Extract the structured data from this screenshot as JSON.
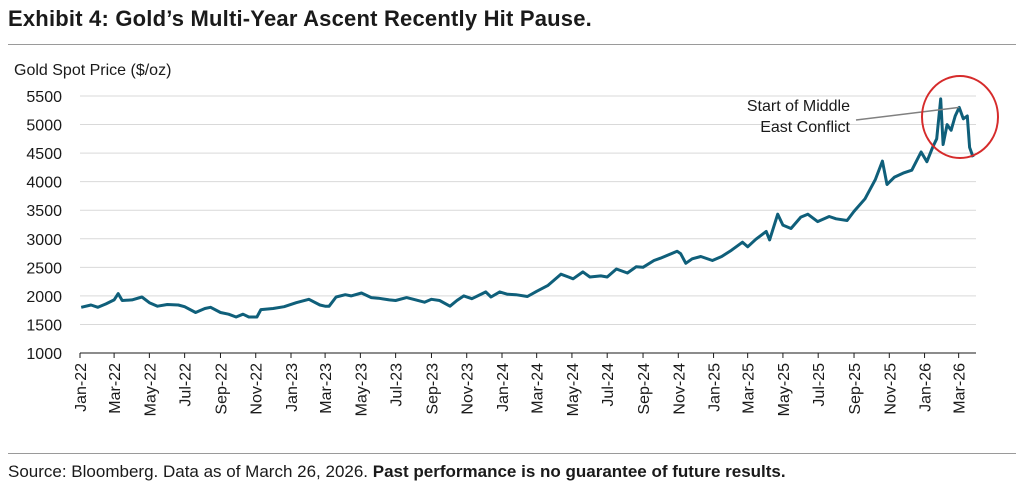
{
  "title": "Exhibit 4: Gold’s Multi-Year Ascent Recently Hit Pause.",
  "footer": {
    "source": "Source: Bloomberg. Data as of March 26, 2026. ",
    "disclaimer": "Past performance is no guarantee of future results."
  },
  "colors": {
    "line": "#0f5f7a",
    "circle": "#d62b2b",
    "grid": "#d9d9d9",
    "annotation_line": "#808080"
  },
  "chart_data": {
    "type": "line",
    "title": "Exhibit 4: Gold’s Multi-Year Ascent Recently Hit Pause.",
    "ylabel": "Gold Spot Price ($/oz)",
    "xlabel": "",
    "ylim": [
      1000,
      5500
    ],
    "yticks": [
      1000,
      1500,
      2000,
      2500,
      3000,
      3500,
      4000,
      4500,
      5000,
      5500
    ],
    "grid": "horizontal",
    "xlim": [
      "2022-01-01",
      "2026-03-31"
    ],
    "xticks": [
      {
        "date": "2022-01-01",
        "label": "Jan-22"
      },
      {
        "date": "2022-03-01",
        "label": "Mar-22"
      },
      {
        "date": "2022-05-01",
        "label": "May-22"
      },
      {
        "date": "2022-07-01",
        "label": "Jul-22"
      },
      {
        "date": "2022-09-01",
        "label": "Sep-22"
      },
      {
        "date": "2022-11-01",
        "label": "Nov-22"
      },
      {
        "date": "2023-01-01",
        "label": "Jan-23"
      },
      {
        "date": "2023-03-01",
        "label": "Mar-23"
      },
      {
        "date": "2023-05-01",
        "label": "May-23"
      },
      {
        "date": "2023-07-01",
        "label": "Jul-23"
      },
      {
        "date": "2023-09-01",
        "label": "Sep-23"
      },
      {
        "date": "2023-11-01",
        "label": "Nov-23"
      },
      {
        "date": "2024-01-01",
        "label": "Jan-24"
      },
      {
        "date": "2024-03-01",
        "label": "Mar-24"
      },
      {
        "date": "2024-05-01",
        "label": "May-24"
      },
      {
        "date": "2024-07-01",
        "label": "Jul-24"
      },
      {
        "date": "2024-09-01",
        "label": "Sep-24"
      },
      {
        "date": "2024-11-01",
        "label": "Nov-24"
      },
      {
        "date": "2025-01-01",
        "label": "Jan-25"
      },
      {
        "date": "2025-03-01",
        "label": "Mar-25"
      },
      {
        "date": "2025-05-01",
        "label": "May-25"
      },
      {
        "date": "2025-07-01",
        "label": "Jul-25"
      },
      {
        "date": "2025-09-01",
        "label": "Sep-25"
      },
      {
        "date": "2025-11-01",
        "label": "Nov-25"
      },
      {
        "date": "2026-01-01",
        "label": "Jan-26"
      },
      {
        "date": "2026-03-01",
        "label": "Mar-26"
      }
    ],
    "series": [
      {
        "points": [
          [
            "2022-01-03",
            1800
          ],
          [
            "2022-01-20",
            1840
          ],
          [
            "2022-02-01",
            1800
          ],
          [
            "2022-02-15",
            1860
          ],
          [
            "2022-03-01",
            1930
          ],
          [
            "2022-03-08",
            2040
          ],
          [
            "2022-03-15",
            1920
          ],
          [
            "2022-04-01",
            1930
          ],
          [
            "2022-04-18",
            1980
          ],
          [
            "2022-05-01",
            1880
          ],
          [
            "2022-05-15",
            1820
          ],
          [
            "2022-06-01",
            1850
          ],
          [
            "2022-06-20",
            1840
          ],
          [
            "2022-07-01",
            1810
          ],
          [
            "2022-07-20",
            1710
          ],
          [
            "2022-08-05",
            1780
          ],
          [
            "2022-08-15",
            1800
          ],
          [
            "2022-09-01",
            1710
          ],
          [
            "2022-09-15",
            1680
          ],
          [
            "2022-09-28",
            1630
          ],
          [
            "2022-10-10",
            1680
          ],
          [
            "2022-10-20",
            1630
          ],
          [
            "2022-11-03",
            1630
          ],
          [
            "2022-11-10",
            1760
          ],
          [
            "2022-12-01",
            1780
          ],
          [
            "2022-12-20",
            1810
          ],
          [
            "2023-01-10",
            1880
          ],
          [
            "2023-02-01",
            1940
          ],
          [
            "2023-02-20",
            1840
          ],
          [
            "2023-03-01",
            1820
          ],
          [
            "2023-03-08",
            1820
          ],
          [
            "2023-03-20",
            1980
          ],
          [
            "2023-04-05",
            2020
          ],
          [
            "2023-04-15",
            2000
          ],
          [
            "2023-05-03",
            2050
          ],
          [
            "2023-05-20",
            1970
          ],
          [
            "2023-06-01",
            1960
          ],
          [
            "2023-06-20",
            1930
          ],
          [
            "2023-07-01",
            1920
          ],
          [
            "2023-07-20",
            1970
          ],
          [
            "2023-08-01",
            1940
          ],
          [
            "2023-08-20",
            1890
          ],
          [
            "2023-09-01",
            1940
          ],
          [
            "2023-09-15",
            1920
          ],
          [
            "2023-10-03",
            1820
          ],
          [
            "2023-10-15",
            1920
          ],
          [
            "2023-10-27",
            2000
          ],
          [
            "2023-11-10",
            1950
          ],
          [
            "2023-11-28",
            2040
          ],
          [
            "2023-12-04",
            2070
          ],
          [
            "2023-12-13",
            1980
          ],
          [
            "2023-12-28",
            2070
          ],
          [
            "2024-01-10",
            2030
          ],
          [
            "2024-01-25",
            2020
          ],
          [
            "2024-02-14",
            1990
          ],
          [
            "2024-03-01",
            2080
          ],
          [
            "2024-03-20",
            2180
          ],
          [
            "2024-04-12",
            2380
          ],
          [
            "2024-04-25",
            2330
          ],
          [
            "2024-05-03",
            2300
          ],
          [
            "2024-05-20",
            2420
          ],
          [
            "2024-06-01",
            2330
          ],
          [
            "2024-06-20",
            2350
          ],
          [
            "2024-07-01",
            2330
          ],
          [
            "2024-07-17",
            2470
          ],
          [
            "2024-08-05",
            2400
          ],
          [
            "2024-08-20",
            2510
          ],
          [
            "2024-09-01",
            2500
          ],
          [
            "2024-09-20",
            2620
          ],
          [
            "2024-10-01",
            2660
          ],
          [
            "2024-10-30",
            2780
          ],
          [
            "2024-11-05",
            2740
          ],
          [
            "2024-11-14",
            2570
          ],
          [
            "2024-11-25",
            2650
          ],
          [
            "2024-12-10",
            2690
          ],
          [
            "2024-12-30",
            2620
          ],
          [
            "2025-01-15",
            2690
          ],
          [
            "2025-02-01",
            2800
          ],
          [
            "2025-02-20",
            2940
          ],
          [
            "2025-03-01",
            2860
          ],
          [
            "2025-03-15",
            2990
          ],
          [
            "2025-04-02",
            3130
          ],
          [
            "2025-04-08",
            2980
          ],
          [
            "2025-04-22",
            3430
          ],
          [
            "2025-05-01",
            3240
          ],
          [
            "2025-05-15",
            3180
          ],
          [
            "2025-06-01",
            3380
          ],
          [
            "2025-06-13",
            3430
          ],
          [
            "2025-06-30",
            3300
          ],
          [
            "2025-07-20",
            3390
          ],
          [
            "2025-08-01",
            3350
          ],
          [
            "2025-08-20",
            3320
          ],
          [
            "2025-09-01",
            3480
          ],
          [
            "2025-09-20",
            3700
          ],
          [
            "2025-10-08",
            4040
          ],
          [
            "2025-10-20",
            4360
          ],
          [
            "2025-10-28",
            3950
          ],
          [
            "2025-11-10",
            4080
          ],
          [
            "2025-11-25",
            4150
          ],
          [
            "2025-12-10",
            4200
          ],
          [
            "2025-12-26",
            4520
          ],
          [
            "2026-01-05",
            4350
          ],
          [
            "2026-01-15",
            4600
          ],
          [
            "2026-01-22",
            4750
          ],
          [
            "2026-01-29",
            5450
          ],
          [
            "2026-02-02",
            4650
          ],
          [
            "2026-02-09",
            5000
          ],
          [
            "2026-02-16",
            4900
          ],
          [
            "2026-02-23",
            5150
          ],
          [
            "2026-03-02",
            5300
          ],
          [
            "2026-03-09",
            5100
          ],
          [
            "2026-03-16",
            5150
          ],
          [
            "2026-03-20",
            4600
          ],
          [
            "2026-03-26",
            4430
          ]
        ]
      }
    ],
    "annotation": {
      "text_line1": "Start of Middle",
      "text_line2": "East Conflict",
      "date": "2026-03-02",
      "value": 5300
    }
  }
}
